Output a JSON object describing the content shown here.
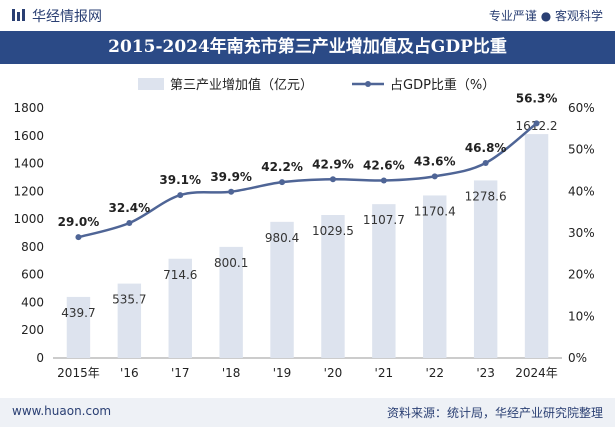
{
  "header": {
    "brand": "华经情报网",
    "slogan": "专业严谨 ● 客观科学"
  },
  "footer": {
    "site": "www.huaon.com",
    "source": "资料来源：统计局，华经产业研究院整理"
  },
  "colors": {
    "bar": "#dde3ee",
    "line": "#4f6596",
    "title_bg": "#2b4a86",
    "text": "#222222"
  },
  "chart_data": {
    "type": "bar",
    "title": "2015-2024年南充市第三产业增加值及占GDP比重",
    "categories": [
      "2015年",
      "'16",
      "'17",
      "'18",
      "'19",
      "'20",
      "'21",
      "'22",
      "'23",
      "2024年"
    ],
    "series": [
      {
        "name": "第三产业增加值（亿元）",
        "type": "bar",
        "axis": "left",
        "values": [
          439.7,
          535.7,
          714.6,
          800.1,
          980.4,
          1029.5,
          1107.7,
          1170.4,
          1278.6,
          1612.2
        ],
        "labels": [
          "439.7",
          "535.7",
          "714.6",
          "800.1",
          "980.4",
          "1029.5",
          "1107.7",
          "1170.4",
          "1278.6",
          "1612.2"
        ]
      },
      {
        "name": "占GDP比重（%）",
        "type": "line",
        "axis": "right",
        "values": [
          29.0,
          32.4,
          39.1,
          39.9,
          42.2,
          42.9,
          42.6,
          43.6,
          46.8,
          56.3
        ],
        "labels": [
          "29.0%",
          "32.4%",
          "39.1%",
          "39.9%",
          "42.2%",
          "42.9%",
          "42.6%",
          "43.6%",
          "46.8%",
          "56.3%"
        ]
      }
    ],
    "ylim_left": [
      0,
      1800
    ],
    "yticks_left": [
      "0",
      "200",
      "400",
      "600",
      "800",
      "1000",
      "1200",
      "1400",
      "1600",
      "1800"
    ],
    "ylim_right": [
      0,
      60
    ],
    "yticks_right": [
      "0%",
      "10%",
      "20%",
      "30%",
      "40%",
      "50%",
      "60%"
    ],
    "legend_position": "top-center",
    "grid": false
  }
}
